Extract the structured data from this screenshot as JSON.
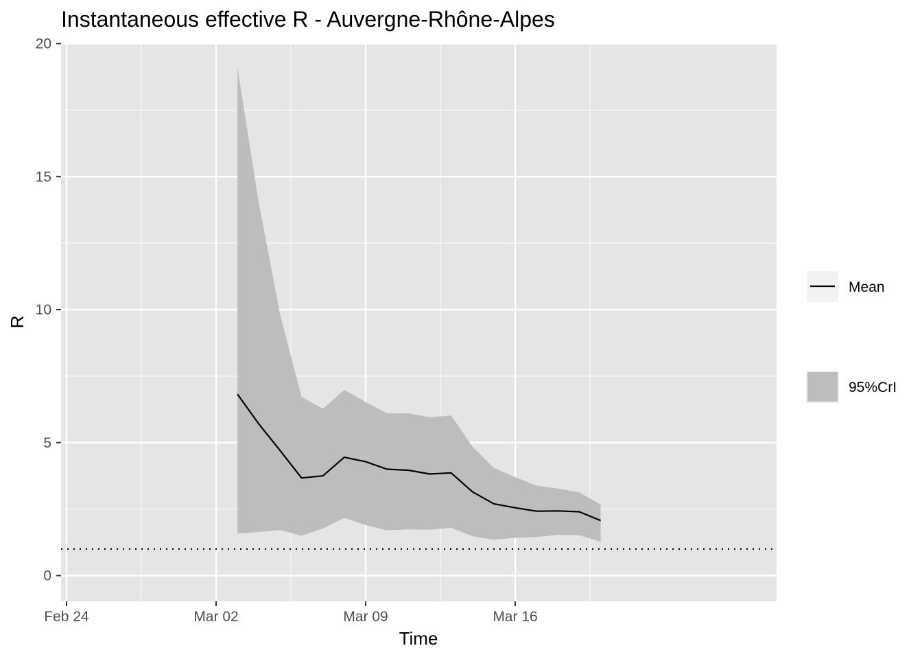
{
  "chart_data": {
    "type": "line",
    "title": "Instantaneous effective R -  Auvergne-Rhône-Alpes",
    "xlabel": "Time",
    "ylabel": "R",
    "x_ticks": [
      {
        "label": "Feb 24",
        "date": "2020-02-24"
      },
      {
        "label": "Mar 02",
        "date": "2020-03-02"
      },
      {
        "label": "Mar 09",
        "date": "2020-03-09"
      },
      {
        "label": "Mar 16",
        "date": "2020-03-16"
      }
    ],
    "y_ticks": [
      0,
      5,
      10,
      15,
      20
    ],
    "xlim": [
      "2020-02-24",
      "2020-03-22"
    ],
    "ylim": [
      0,
      20
    ],
    "grid": true,
    "legend_position": "right",
    "colors": {
      "panel": "#e5e5e5",
      "grid": "#ffffff",
      "ribbon": "#bdbdbd",
      "line": "#000000",
      "text": "#4d4d4d"
    },
    "reference_line": {
      "y": 1,
      "style": "dotted"
    },
    "series": [
      {
        "name": "Mean",
        "type": "line",
        "x": [
          "2020-03-03",
          "2020-03-04",
          "2020-03-05",
          "2020-03-06",
          "2020-03-07",
          "2020-03-08",
          "2020-03-09",
          "2020-03-10",
          "2020-03-11",
          "2020-03-12",
          "2020-03-13",
          "2020-03-14",
          "2020-03-15",
          "2020-03-16",
          "2020-03-17",
          "2020-03-18",
          "2020-03-19",
          "2020-03-20"
        ],
        "values": [
          6.82,
          5.7,
          4.7,
          3.67,
          3.75,
          4.45,
          4.28,
          4.0,
          3.96,
          3.82,
          3.86,
          3.15,
          2.7,
          2.55,
          2.42,
          2.43,
          2.4,
          2.07
        ]
      },
      {
        "name": "95%CrI",
        "type": "ribbon",
        "x": [
          "2020-03-03",
          "2020-03-04",
          "2020-03-05",
          "2020-03-06",
          "2020-03-07",
          "2020-03-08",
          "2020-03-09",
          "2020-03-10",
          "2020-03-11",
          "2020-03-12",
          "2020-03-13",
          "2020-03-14",
          "2020-03-15",
          "2020-03-16",
          "2020-03-17",
          "2020-03-18",
          "2020-03-19",
          "2020-03-20"
        ],
        "lower": [
          1.58,
          1.64,
          1.71,
          1.5,
          1.77,
          2.17,
          1.9,
          1.7,
          1.74,
          1.72,
          1.8,
          1.48,
          1.35,
          1.42,
          1.45,
          1.53,
          1.52,
          1.27
        ],
        "upper": [
          19.1,
          14.0,
          9.8,
          6.72,
          6.27,
          6.98,
          6.53,
          6.1,
          6.1,
          5.95,
          6.02,
          4.85,
          4.05,
          3.7,
          3.38,
          3.27,
          3.13,
          2.67
        ]
      }
    ],
    "legend": [
      {
        "label": "Mean",
        "kind": "line"
      },
      {
        "label": "95%CrI",
        "kind": "fill"
      }
    ]
  }
}
